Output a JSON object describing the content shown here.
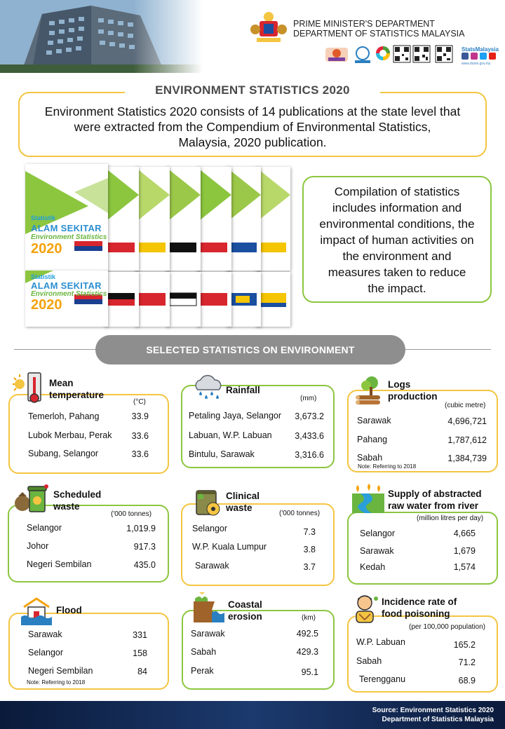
{
  "header": {
    "dept_line1": "PRIME MINISTER'S DEPARTMENT",
    "dept_line2": "DEPARTMENT OF STATISTICS MALAYSIA",
    "social_title": "StatsMalaysia",
    "social_url": "www.dosm.gov.my",
    "icons": [
      "building-photo",
      "malaysia-crest",
      "mascot-logo",
      "statistics-day-logo",
      "sdg-wheel-logo",
      "qr-code",
      "qr-code",
      "qr-code",
      "facebook-icon",
      "instagram-icon",
      "twitter-icon",
      "youtube-icon"
    ]
  },
  "title": {
    "heading": "ENVIRONMENT STATISTICS 2020",
    "desc_line1": "Environment Statistics 2020 consists of 14 publications at the state level that",
    "desc_line2": "were extracted from the Compendium of Environmental Statistics,",
    "desc_line3": "Malaysia, 2020 publication."
  },
  "cover": {
    "line1": "Statistik",
    "line2": "ALAM SEKITAR",
    "line3": "Environment Statistics",
    "year": "2020"
  },
  "compilation": {
    "lines": [
      "Compilation of statistics",
      "includes information and",
      "environmental conditions, the",
      "impact of human activities on",
      "the environment and",
      "measures taken to reduce",
      "the impact."
    ]
  },
  "section_title": "SELECTED STATISTICS ON ENVIRONMENT",
  "cards": {
    "mean_temp": {
      "title1": "Mean",
      "title2": "temperature",
      "unit": "(°C)",
      "icon": "thermometer-sun-icon",
      "rows": [
        {
          "label": "Temerloh, Pahang",
          "value": "33.9"
        },
        {
          "label": "Lubok Merbau, Perak",
          "value": "33.6"
        },
        {
          "label": "Subang, Selangor",
          "value": "33.6"
        }
      ]
    },
    "rainfall": {
      "title1": "Rainfall",
      "unit": "(mm)",
      "icon": "rain-cloud-icon",
      "rows": [
        {
          "label": "Petaling Jaya, Selangor",
          "value": "3,673.2"
        },
        {
          "label": "Labuan, W.P. Labuan",
          "value": "3,433.6"
        },
        {
          "label": "Bintulu, Sarawak",
          "value": "3,316.6"
        }
      ]
    },
    "logs": {
      "title1": "Logs",
      "title2": "production",
      "unit": "(cubic metre)",
      "icon": "logs-tree-icon",
      "note": "Note: Referring to 2018",
      "rows": [
        {
          "label": "Sarawak",
          "value": "4,696,721"
        },
        {
          "label": "Pahang",
          "value": "1,787,612"
        },
        {
          "label": "Sabah",
          "value": "1,384,739"
        }
      ]
    },
    "sched_waste": {
      "title1": "Scheduled",
      "title2": "waste",
      "unit": "('000 tonnes)",
      "icon": "waste-bin-icon",
      "rows": [
        {
          "label": "Selangor",
          "value": "1,019.9"
        },
        {
          "label": "Johor",
          "value": "917.3"
        },
        {
          "label": "Negeri Sembilan",
          "value": "435.0"
        }
      ]
    },
    "clinical_waste": {
      "title1": "Clinical",
      "title2": "waste",
      "unit": "('000 tonnes)",
      "icon": "biohazard-barrel-icon",
      "rows": [
        {
          "label": "Selangor",
          "value": "7.3"
        },
        {
          "label": "W.P. Kuala Lumpur",
          "value": "3.8"
        },
        {
          "label": "Sarawak",
          "value": "3.7"
        }
      ]
    },
    "raw_water": {
      "title1": "Supply of abstracted",
      "title2": "raw water from river",
      "unit": "(million litres per day)",
      "icon": "river-icon",
      "rows": [
        {
          "label": "Selangor",
          "value": "4,665"
        },
        {
          "label": "Sarawak",
          "value": "1,679"
        },
        {
          "label": "Kedah",
          "value": "1,574"
        }
      ]
    },
    "flood": {
      "title1": "Flood",
      "icon": "flood-house-icon",
      "note": "Note: Referring to 2018",
      "rows": [
        {
          "label": "Sarawak",
          "value": "331"
        },
        {
          "label": "Selangor",
          "value": "158"
        },
        {
          "label": "Negeri Sembilan",
          "value": "84"
        }
      ]
    },
    "coastal": {
      "title1": "Coastal",
      "title2": "erosion",
      "unit": "(km)",
      "icon": "coastal-erosion-icon",
      "rows": [
        {
          "label": "Sarawak",
          "value": "492.5"
        },
        {
          "label": "Sabah",
          "value": "429.3"
        },
        {
          "label": "Perak",
          "value": "95.1"
        }
      ]
    },
    "food_poison": {
      "title1": "Incidence rate of",
      "title2": "food poisoning",
      "unit": "(per 100,000 population)",
      "icon": "sick-person-icon",
      "rows": [
        {
          "label": "W.P. Labuan",
          "value": "165.2"
        },
        {
          "label": "Sabah",
          "value": "71.2"
        },
        {
          "label": "Terengganu",
          "value": "68.9"
        }
      ]
    }
  },
  "footer": {
    "line1": "Source: Environment Statistics 2020",
    "line2": "Department of Statistics  Malaysia"
  },
  "colors": {
    "gold": "#f4c542",
    "green": "#8cc63f",
    "grey_pill": "#8e8e8e",
    "footer_navy": "#0f2550"
  }
}
